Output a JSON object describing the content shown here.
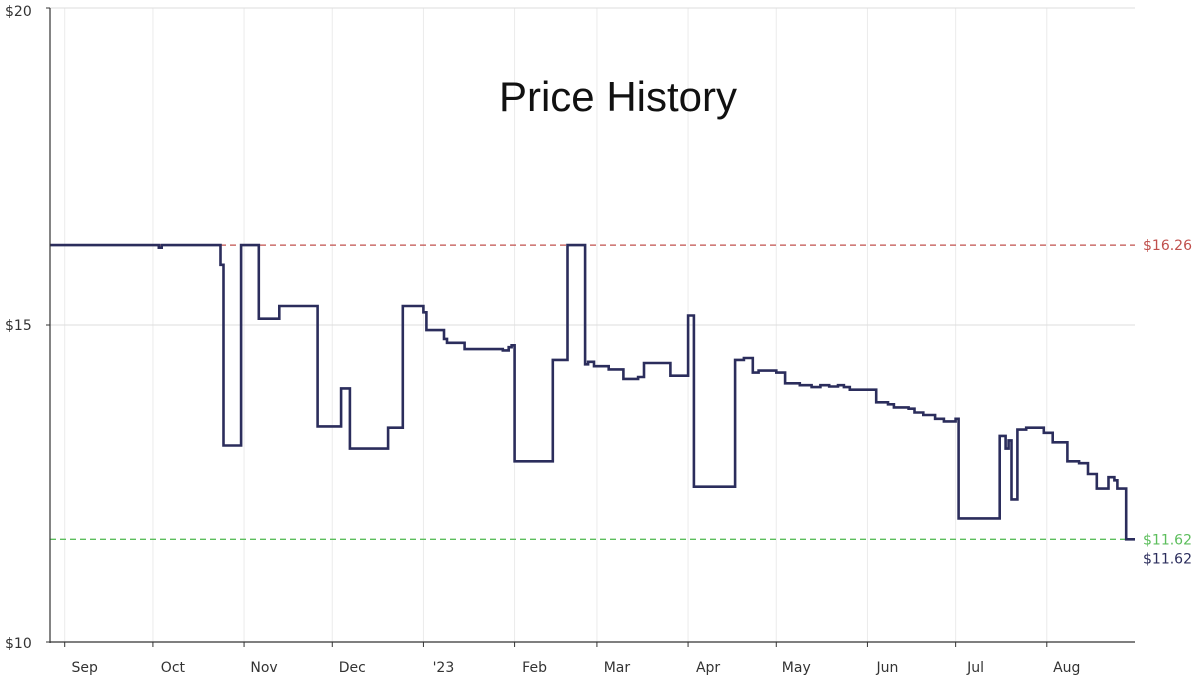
{
  "chart_data": {
    "type": "line",
    "title": "Price History",
    "ylim": [
      10,
      20
    ],
    "y_ticks": [
      10,
      15,
      20
    ],
    "y_tick_labels": [
      "$10",
      "$15",
      "$20"
    ],
    "x_range": [
      "2022-08-27",
      "2023-08-31"
    ],
    "x_ticks": [
      {
        "date": "2022-09-01",
        "label": "Sep"
      },
      {
        "date": "2022-10-01",
        "label": "Oct"
      },
      {
        "date": "2022-11-01",
        "label": "Nov"
      },
      {
        "date": "2022-12-01",
        "label": "Dec"
      },
      {
        "date": "2023-01-01",
        "label": "'23"
      },
      {
        "date": "2023-02-01",
        "label": "Feb"
      },
      {
        "date": "2023-03-01",
        "label": "Mar"
      },
      {
        "date": "2023-04-01",
        "label": "Apr"
      },
      {
        "date": "2023-05-01",
        "label": "May"
      },
      {
        "date": "2023-06-01",
        "label": "Jun"
      },
      {
        "date": "2023-07-01",
        "label": "Jul"
      },
      {
        "date": "2023-08-01",
        "label": "Aug"
      }
    ],
    "grid": true,
    "step": true,
    "series": [
      {
        "color": "#2b2d5c",
        "points": [
          [
            "2022-08-27",
            16.26
          ],
          [
            "2022-10-03",
            16.22
          ],
          [
            "2022-10-04",
            16.26
          ],
          [
            "2022-10-24",
            15.95
          ],
          [
            "2022-10-25",
            13.1
          ],
          [
            "2022-10-31",
            16.26
          ],
          [
            "2022-11-06",
            15.1
          ],
          [
            "2022-11-13",
            15.3
          ],
          [
            "2022-11-26",
            13.4
          ],
          [
            "2022-12-04",
            14.0
          ],
          [
            "2022-12-07",
            13.05
          ],
          [
            "2022-12-20",
            13.38
          ],
          [
            "2022-12-25",
            15.3
          ],
          [
            "2023-01-01",
            15.2
          ],
          [
            "2023-01-02",
            14.92
          ],
          [
            "2023-01-08",
            14.78
          ],
          [
            "2023-01-09",
            14.72
          ],
          [
            "2023-01-15",
            14.62
          ],
          [
            "2023-01-28",
            14.6
          ],
          [
            "2023-01-30",
            14.65
          ],
          [
            "2023-01-31",
            14.68
          ],
          [
            "2023-02-01",
            12.85
          ],
          [
            "2023-02-14",
            14.45
          ],
          [
            "2023-02-19",
            16.26
          ],
          [
            "2023-02-25",
            14.38
          ],
          [
            "2023-02-26",
            14.42
          ],
          [
            "2023-02-28",
            14.35
          ],
          [
            "2023-03-05",
            14.3
          ],
          [
            "2023-03-10",
            14.15
          ],
          [
            "2023-03-15",
            14.18
          ],
          [
            "2023-03-17",
            14.4
          ],
          [
            "2023-03-26",
            14.2
          ],
          [
            "2023-04-01",
            15.15
          ],
          [
            "2023-04-03",
            12.45
          ],
          [
            "2023-04-17",
            14.45
          ],
          [
            "2023-04-20",
            14.48
          ],
          [
            "2023-04-23",
            14.25
          ],
          [
            "2023-04-25",
            14.28
          ],
          [
            "2023-05-01",
            14.25
          ],
          [
            "2023-05-04",
            14.08
          ],
          [
            "2023-05-09",
            14.05
          ],
          [
            "2023-05-13",
            14.02
          ],
          [
            "2023-05-16",
            14.05
          ],
          [
            "2023-05-19",
            14.03
          ],
          [
            "2023-05-22",
            14.05
          ],
          [
            "2023-05-24",
            14.02
          ],
          [
            "2023-05-26",
            13.98
          ],
          [
            "2023-06-04",
            13.78
          ],
          [
            "2023-06-08",
            13.75
          ],
          [
            "2023-06-10",
            13.7
          ],
          [
            "2023-06-15",
            13.68
          ],
          [
            "2023-06-17",
            13.62
          ],
          [
            "2023-06-20",
            13.58
          ],
          [
            "2023-06-24",
            13.52
          ],
          [
            "2023-06-27",
            13.48
          ],
          [
            "2023-07-01",
            13.52
          ],
          [
            "2023-07-02",
            11.95
          ],
          [
            "2023-07-16",
            13.25
          ],
          [
            "2023-07-18",
            13.05
          ],
          [
            "2023-07-19",
            13.18
          ],
          [
            "2023-07-20",
            12.25
          ],
          [
            "2023-07-22",
            13.35
          ],
          [
            "2023-07-25",
            13.38
          ],
          [
            "2023-07-31",
            13.3
          ],
          [
            "2023-08-03",
            13.15
          ],
          [
            "2023-08-08",
            12.85
          ],
          [
            "2023-08-12",
            12.82
          ],
          [
            "2023-08-15",
            12.65
          ],
          [
            "2023-08-18",
            12.42
          ],
          [
            "2023-08-22",
            12.6
          ],
          [
            "2023-08-24",
            12.55
          ],
          [
            "2023-08-25",
            12.42
          ],
          [
            "2023-08-28",
            11.62
          ],
          [
            "2023-08-31",
            11.62
          ]
        ]
      }
    ],
    "reference_lines": [
      {
        "value": 16.26,
        "label": "$16.26",
        "color": "#c0504d",
        "style": "dashed"
      },
      {
        "value": 11.62,
        "label": "$11.62",
        "color": "#5cbe5c",
        "style": "dashed"
      }
    ],
    "current_price": {
      "value": 11.62,
      "label": "$11.62",
      "color": "#2b2d5c"
    }
  }
}
